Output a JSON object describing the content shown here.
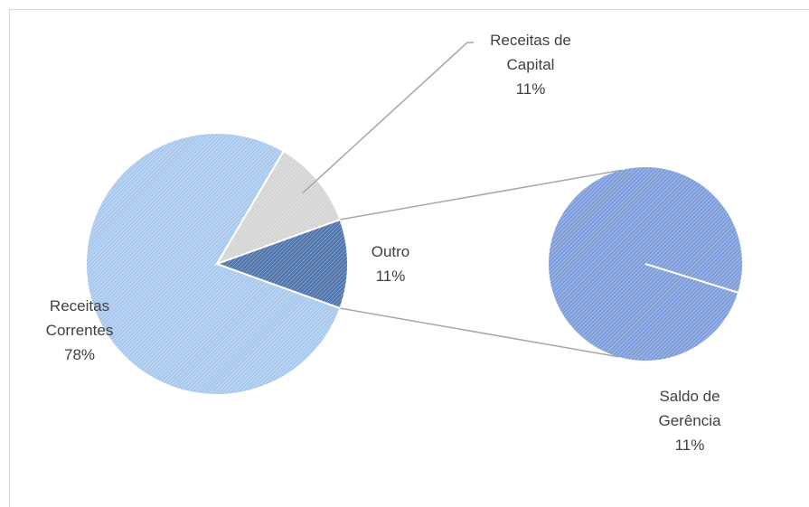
{
  "chart_data": {
    "type": "pie-of-pie",
    "categories": [
      "Receitas Correntes",
      "Receitas de Capital",
      "Outro"
    ],
    "values": [
      78,
      11,
      11
    ],
    "value_labels": [
      "78%",
      "11%",
      "11%"
    ],
    "colors": [
      "#a8c8ee",
      "#d4d4d4",
      "#4f74ad"
    ],
    "secondary": {
      "categories": [
        "Saldo de Gerência"
      ],
      "values": [
        11
      ],
      "value_labels": [
        "11%"
      ],
      "colors": [
        "#7e9ddb"
      ]
    }
  }
}
